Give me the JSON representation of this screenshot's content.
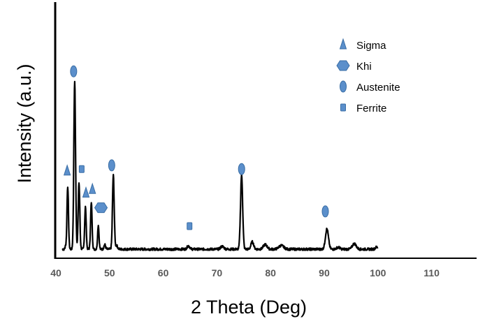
{
  "chart_data": {
    "type": "line",
    "title": "",
    "xlabel": "2 Theta (Deg)",
    "ylabel": "Intensity (a.u.)",
    "xlim": [
      40,
      118
    ],
    "ylim": [
      0,
      100
    ],
    "xticks": [
      "40",
      "50",
      "60",
      "70",
      "80",
      "90",
      "100",
      "110"
    ],
    "grid": false,
    "legend_position": "top-right",
    "line_color": "#000000",
    "marker_color": "#5b8fcb",
    "marker_edge": "#3a6ea5",
    "legend": [
      {
        "label": "Sigma",
        "marker": "triangle"
      },
      {
        "label": "Khi",
        "marker": "hexagon"
      },
      {
        "label": "Austenite",
        "marker": "ellipse"
      },
      {
        "label": "Ferrite",
        "marker": "square"
      }
    ],
    "peaks": [
      {
        "x": 41.8,
        "y": 1.5,
        "w": 0.1
      },
      {
        "x": 42.2,
        "y": 34,
        "w": 0.14
      },
      {
        "x": 43.5,
        "y": 91,
        "w": 0.16
      },
      {
        "x": 44.3,
        "y": 36,
        "w": 0.15
      },
      {
        "x": 45.5,
        "y": 23,
        "w": 0.14
      },
      {
        "x": 46.6,
        "y": 25,
        "w": 0.14
      },
      {
        "x": 47.9,
        "y": 13,
        "w": 0.13
      },
      {
        "x": 49.1,
        "y": 2.5,
        "w": 0.15
      },
      {
        "x": 50.7,
        "y": 40,
        "w": 0.16
      },
      {
        "x": 51.3,
        "y": 2,
        "w": 0.2
      },
      {
        "x": 64.7,
        "y": 1.8,
        "w": 0.25
      },
      {
        "x": 71.0,
        "y": 1.5,
        "w": 0.3
      },
      {
        "x": 74.6,
        "y": 40,
        "w": 0.2
      },
      {
        "x": 76.6,
        "y": 4,
        "w": 0.25
      },
      {
        "x": 79.0,
        "y": 2.5,
        "w": 0.35
      },
      {
        "x": 82.0,
        "y": 2,
        "w": 0.45
      },
      {
        "x": 90.5,
        "y": 11,
        "w": 0.28
      },
      {
        "x": 92.6,
        "y": 1,
        "w": 0.3
      },
      {
        "x": 95.6,
        "y": 3,
        "w": 0.35
      },
      {
        "x": 99.8,
        "y": 1.2,
        "w": 0.25
      }
    ],
    "baseline": 1.5,
    "x_end": 100,
    "markers": [
      {
        "phase": "Sigma",
        "x": 42.1,
        "y": 44
      },
      {
        "phase": "Sigma",
        "x": 45.6,
        "y": 32
      },
      {
        "phase": "Sigma",
        "x": 46.8,
        "y": 34
      },
      {
        "phase": "Khi",
        "x": 48.4,
        "y": 24
      },
      {
        "phase": "Austenite",
        "x": 43.3,
        "y": 98
      },
      {
        "phase": "Austenite",
        "x": 50.4,
        "y": 47
      },
      {
        "phase": "Austenite",
        "x": 74.6,
        "y": 45
      },
      {
        "phase": "Austenite",
        "x": 90.2,
        "y": 22
      },
      {
        "phase": "Ferrite",
        "x": 44.8,
        "y": 45
      },
      {
        "phase": "Ferrite",
        "x": 64.9,
        "y": 14
      }
    ]
  }
}
